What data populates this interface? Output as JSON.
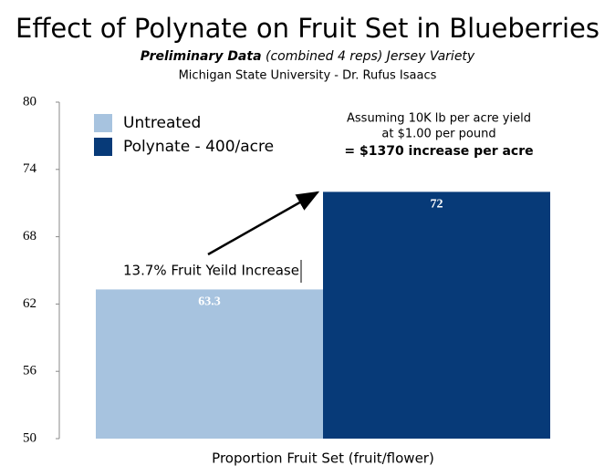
{
  "chart_data": {
    "type": "bar",
    "title": "Effect of Polynate on Fruit Set in Blueberries",
    "subtitle_bold": "Preliminary Data",
    "subtitle": "(combined 4 reps) Jersey Variety",
    "source": "Michigan State University - Dr. Rufus Isaacs",
    "categories": [
      "Proportion Fruit Set (fruit/flower)"
    ],
    "series": [
      {
        "name": "Untreated",
        "color": "#a7c3df",
        "values": [
          63.3
        ]
      },
      {
        "name": "Polynate - 400/acre",
        "color": "#073a78",
        "values": [
          72
        ]
      }
    ],
    "ylim": [
      50,
      80
    ],
    "yticks": [
      50,
      56,
      62,
      68,
      74,
      80
    ],
    "grid": false,
    "legend": "top-left",
    "annotations": [
      "Assuming 10K lb per acre yield",
      "at $1.00 per pound",
      "= $1370 increase per acre",
      "13.7% Fruit Yeild Increase"
    ]
  }
}
